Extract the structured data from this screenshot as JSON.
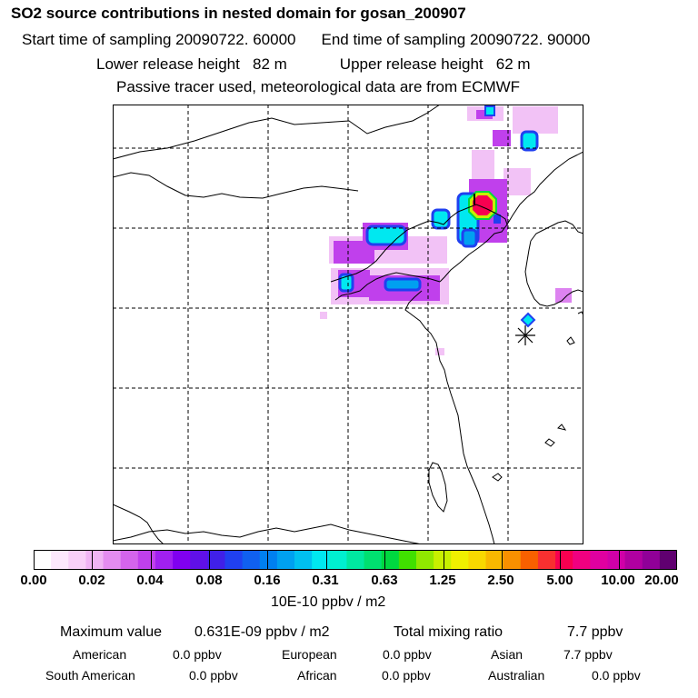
{
  "header": {
    "title": "SO2 source contributions in nested domain for gosan_200907",
    "start_label": "Start time of sampling 20090722. 60000",
    "end_label": "End time of sampling 20090722. 90000",
    "lower_label": "Lower release height   82 m",
    "upper_label": "Upper release height   62 m",
    "note": "Passive tracer used, meteorological data are from ECMWF"
  },
  "legend": {
    "ticks": [
      "0.00",
      "0.02",
      "0.04",
      "0.08",
      "0.16",
      "0.31",
      "0.63",
      "1.25",
      "2.50",
      "5.00",
      "10.00",
      "20.00"
    ],
    "unit": "10E-10 ppbv / m2",
    "colors": [
      "#ffffff",
      "#fce8fc",
      "#f8d0f8",
      "#f0b4f4",
      "#e48cf0",
      "#d464ec",
      "#c040ec",
      "#a020f0",
      "#8000f0",
      "#6010e8",
      "#4020e8",
      "#2040f0",
      "#1060f0",
      "#0080f0",
      "#00a0f0",
      "#00c0f0",
      "#00e8f0",
      "#00f0d0",
      "#00e8a0",
      "#00e070",
      "#00d840",
      "#40e000",
      "#90e800",
      "#c8f000",
      "#f0f000",
      "#f8d800",
      "#f8b800",
      "#f89000",
      "#f86000",
      "#f83030",
      "#f80050",
      "#f00080",
      "#e000a0",
      "#d000a8",
      "#b000a0",
      "#900098",
      "#600070"
    ]
  },
  "stats": {
    "max_label": "Maximum value",
    "max_value": "0.631E-09 ppbv / m2",
    "total_label": "Total mixing ratio",
    "total_value": "7.7 ppbv",
    "american_label": "American",
    "american_value": "0.0 ppbv",
    "european_label": "European",
    "european_value": "0.0 ppbv",
    "asian_label": "Asian",
    "asian_value": "7.7 ppbv",
    "south_american_label": "South American",
    "south_american_value": "0.0 ppbv",
    "african_label": "African",
    "african_value": "0.0 ppbv",
    "australian_label": "Australian",
    "australian_value": "0.0 ppbv"
  }
}
